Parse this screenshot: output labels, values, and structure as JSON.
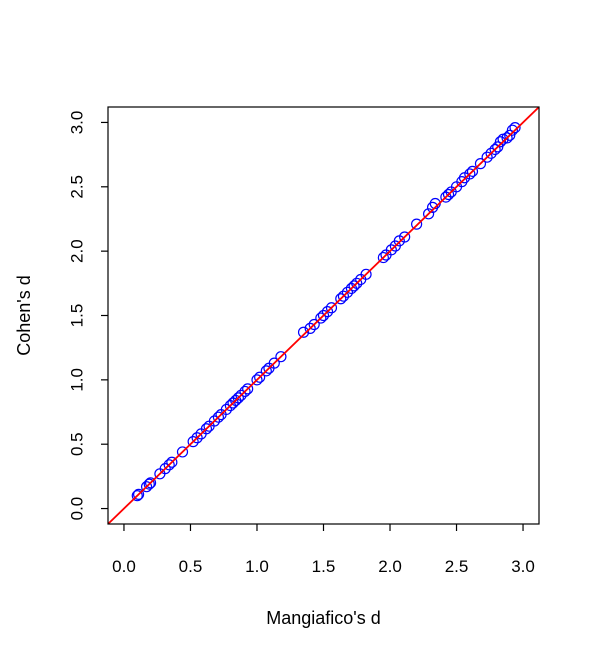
{
  "chart_data": {
    "type": "scatter",
    "title": "",
    "xlabel": "Mangiafico's d",
    "ylabel": "Cohen's d",
    "xlim": [
      -0.12,
      3.12
    ],
    "ylim": [
      -0.12,
      3.12
    ],
    "xticks": [
      0.0,
      0.5,
      1.0,
      1.5,
      2.0,
      2.5,
      3.0
    ],
    "yticks": [
      0.0,
      0.5,
      1.0,
      1.5,
      2.0,
      2.5,
      3.0
    ],
    "xtick_labels": [
      "0.0",
      "0.5",
      "1.0",
      "1.5",
      "2.0",
      "2.5",
      "3.0"
    ],
    "ytick_labels": [
      "0.0",
      "0.5",
      "1.0",
      "1.5",
      "2.0",
      "2.5",
      "3.0"
    ],
    "grid": false,
    "point_color": "#0000ff",
    "line_color": "#ff0000",
    "reference_line": {
      "intercept": 0,
      "slope": 1
    },
    "points": {
      "x": [
        0.1,
        0.11,
        0.17,
        0.19,
        0.2,
        0.27,
        0.31,
        0.34,
        0.36,
        0.44,
        0.52,
        0.55,
        0.58,
        0.62,
        0.64,
        0.68,
        0.71,
        0.73,
        0.77,
        0.8,
        0.82,
        0.84,
        0.86,
        0.88,
        0.91,
        0.93,
        1.0,
        1.02,
        1.07,
        1.09,
        1.13,
        1.18,
        1.35,
        1.4,
        1.43,
        1.48,
        1.5,
        1.53,
        1.56,
        1.63,
        1.65,
        1.68,
        1.71,
        1.73,
        1.75,
        1.78,
        1.82,
        1.95,
        1.97,
        2.01,
        2.04,
        2.07,
        2.11,
        2.2,
        2.29,
        2.32,
        2.34,
        2.42,
        2.44,
        2.46,
        2.5,
        2.54,
        2.56,
        2.6,
        2.62,
        2.68,
        2.73,
        2.76,
        2.79,
        2.81,
        2.83,
        2.85,
        2.88,
        2.9,
        2.92,
        2.94
      ],
      "y": [
        0.1,
        0.11,
        0.17,
        0.19,
        0.2,
        0.27,
        0.31,
        0.34,
        0.36,
        0.44,
        0.52,
        0.55,
        0.58,
        0.62,
        0.64,
        0.68,
        0.71,
        0.73,
        0.77,
        0.8,
        0.82,
        0.84,
        0.86,
        0.88,
        0.91,
        0.93,
        1.0,
        1.02,
        1.07,
        1.09,
        1.13,
        1.18,
        1.37,
        1.4,
        1.43,
        1.48,
        1.5,
        1.53,
        1.56,
        1.63,
        1.65,
        1.68,
        1.71,
        1.73,
        1.75,
        1.78,
        1.82,
        1.95,
        1.97,
        2.01,
        2.04,
        2.08,
        2.11,
        2.21,
        2.29,
        2.34,
        2.37,
        2.42,
        2.44,
        2.46,
        2.5,
        2.54,
        2.57,
        2.6,
        2.62,
        2.68,
        2.73,
        2.76,
        2.79,
        2.81,
        2.85,
        2.87,
        2.88,
        2.9,
        2.94,
        2.96
      ]
    }
  }
}
